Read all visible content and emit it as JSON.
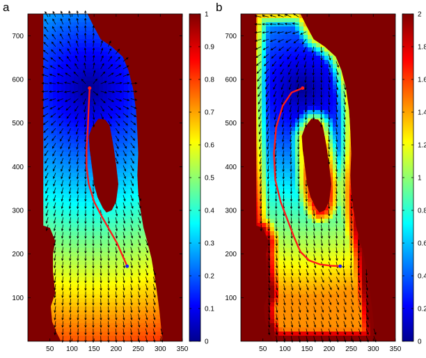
{
  "chart_data": [
    {
      "panel_label": "a",
      "type": "heatmap",
      "description_note": "",
      "xlim": [
        0,
        350
      ],
      "ylim": [
        0,
        750
      ],
      "xticks": [
        50,
        100,
        150,
        200,
        250,
        300,
        350
      ],
      "yticks": [
        100,
        200,
        300,
        400,
        500,
        600,
        700
      ],
      "colorbar": {
        "min": 0,
        "max": 1,
        "ticks": [
          0,
          0.1,
          0.2,
          0.3,
          0.4,
          0.5,
          0.6,
          0.7,
          0.8,
          0.9,
          1
        ]
      },
      "source": [
        140,
        580
      ],
      "target": [
        225,
        172
      ],
      "path": [
        [
          140,
          580
        ],
        [
          138,
          540
        ],
        [
          136,
          490
        ],
        [
          133,
          440
        ],
        [
          133,
          400
        ],
        [
          138,
          360
        ],
        [
          150,
          320
        ],
        [
          168,
          285
        ],
        [
          185,
          255
        ],
        [
          202,
          225
        ],
        [
          215,
          195
        ],
        [
          225,
          172
        ]
      ],
      "domain_outline": [
        [
          35,
          750
        ],
        [
          135,
          750
        ],
        [
          150,
          720
        ],
        [
          165,
          692
        ],
        [
          190,
          675
        ],
        [
          215,
          652
        ],
        [
          228,
          620
        ],
        [
          238,
          580
        ],
        [
          245,
          530
        ],
        [
          248,
          480
        ],
        [
          250,
          430
        ],
        [
          248,
          380
        ],
        [
          250,
          340
        ],
        [
          255,
          300
        ],
        [
          262,
          260
        ],
        [
          270,
          230
        ],
        [
          280,
          190
        ],
        [
          290,
          130
        ],
        [
          298,
          70
        ],
        [
          305,
          0
        ],
        [
          75,
          0
        ],
        [
          65,
          20
        ],
        [
          55,
          45
        ],
        [
          52,
          80
        ],
        [
          62,
          110
        ],
        [
          57,
          160
        ],
        [
          57,
          200
        ],
        [
          62,
          230
        ],
        [
          50,
          260
        ],
        [
          35,
          265
        ]
      ],
      "hole_outline": [
        [
          145,
          490
        ],
        [
          160,
          510
        ],
        [
          175,
          508
        ],
        [
          185,
          495
        ],
        [
          190,
          470
        ],
        [
          195,
          440
        ],
        [
          200,
          405
        ],
        [
          205,
          360
        ],
        [
          200,
          320
        ],
        [
          190,
          300
        ],
        [
          178,
          295
        ],
        [
          170,
          305
        ],
        [
          158,
          330
        ],
        [
          150,
          360
        ],
        [
          145,
          400
        ],
        [
          140,
          440
        ],
        [
          138,
          470
        ]
      ]
    },
    {
      "panel_label": "b",
      "type": "heatmap",
      "description_note": "",
      "xlim": [
        0,
        350
      ],
      "ylim": [
        0,
        750
      ],
      "xticks": [
        50,
        100,
        150,
        200,
        250,
        300,
        350
      ],
      "yticks": [
        100,
        200,
        300,
        400,
        500,
        600,
        700
      ],
      "colorbar": {
        "min": 0,
        "max": 2,
        "ticks": [
          0,
          0.2,
          0.4,
          0.6,
          0.8,
          1,
          1.2,
          1.4,
          1.6,
          1.8,
          2
        ]
      },
      "source": [
        140,
        580
      ],
      "target": [
        225,
        172
      ],
      "path": [
        [
          140,
          580
        ],
        [
          115,
          570
        ],
        [
          95,
          540
        ],
        [
          80,
          490
        ],
        [
          75,
          430
        ],
        [
          78,
          370
        ],
        [
          90,
          320
        ],
        [
          105,
          280
        ],
        [
          120,
          240
        ],
        [
          135,
          205
        ],
        [
          155,
          185
        ],
        [
          180,
          176
        ],
        [
          205,
          173
        ],
        [
          225,
          172
        ]
      ],
      "domain_outline": [
        [
          35,
          750
        ],
        [
          135,
          750
        ],
        [
          150,
          720
        ],
        [
          165,
          692
        ],
        [
          190,
          675
        ],
        [
          215,
          652
        ],
        [
          228,
          620
        ],
        [
          238,
          580
        ],
        [
          245,
          530
        ],
        [
          248,
          480
        ],
        [
          250,
          430
        ],
        [
          248,
          380
        ],
        [
          250,
          340
        ],
        [
          255,
          300
        ],
        [
          262,
          260
        ],
        [
          270,
          230
        ],
        [
          280,
          190
        ],
        [
          290,
          130
        ],
        [
          298,
          70
        ],
        [
          305,
          0
        ],
        [
          75,
          0
        ],
        [
          65,
          20
        ],
        [
          55,
          45
        ],
        [
          52,
          80
        ],
        [
          62,
          110
        ],
        [
          57,
          160
        ],
        [
          57,
          200
        ],
        [
          62,
          230
        ],
        [
          50,
          260
        ],
        [
          35,
          265
        ]
      ],
      "hole_outline": [
        [
          145,
          490
        ],
        [
          160,
          510
        ],
        [
          175,
          508
        ],
        [
          185,
          495
        ],
        [
          190,
          470
        ],
        [
          195,
          440
        ],
        [
          200,
          405
        ],
        [
          205,
          360
        ],
        [
          200,
          320
        ],
        [
          190,
          300
        ],
        [
          178,
          295
        ],
        [
          170,
          305
        ],
        [
          158,
          330
        ],
        [
          150,
          360
        ],
        [
          145,
          400
        ],
        [
          140,
          440
        ],
        [
          138,
          470
        ]
      ]
    }
  ]
}
